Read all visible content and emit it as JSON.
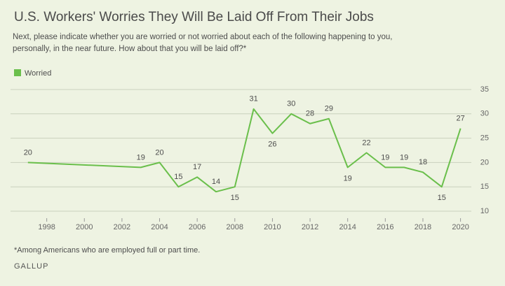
{
  "chart_data": {
    "type": "line",
    "title": "U.S. Workers' Worries They Will Be Laid Off From Their Jobs",
    "subtitle": "Next, please indicate whether you are worried or not worried about each of the following happening to you, personally, in the near future. How about that you will be laid off?*",
    "x": [
      1997,
      2003,
      2004,
      2005,
      2006,
      2007,
      2008,
      2009,
      2010,
      2011,
      2012,
      2013,
      2014,
      2015,
      2016,
      2017,
      2018,
      2019,
      2020
    ],
    "series": [
      {
        "name": "Worried",
        "color": "#6abf4b",
        "values": [
          20,
          19,
          20,
          15,
          17,
          14,
          15,
          31,
          26,
          30,
          28,
          29,
          19,
          22,
          19,
          19,
          18,
          15,
          27
        ]
      }
    ],
    "xlim": [
      1996,
      2020.5
    ],
    "xticks": [
      1998,
      2000,
      2002,
      2004,
      2006,
      2008,
      2010,
      2012,
      2014,
      2016,
      2018,
      2020
    ],
    "ylim": [
      10,
      35
    ],
    "yticks": [
      10,
      15,
      20,
      25,
      30,
      35
    ],
    "grid": true,
    "footnote": "*Among Americans who are employed full or part time.",
    "source": "GALLUP"
  }
}
